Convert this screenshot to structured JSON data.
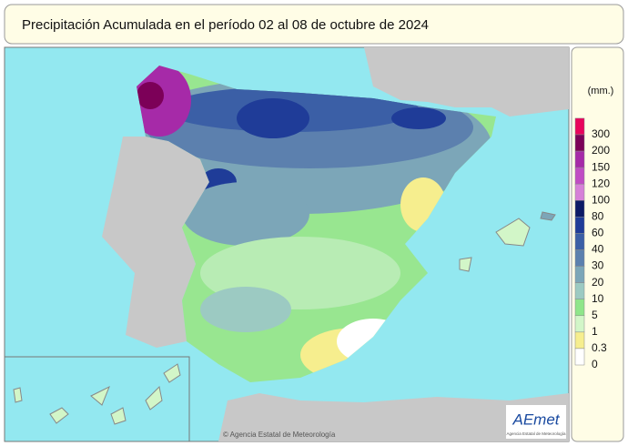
{
  "header": {
    "title": "Precipitación Acumulada en el período 02 al 08 de octubre de 2024"
  },
  "legend": {
    "unit": "(mm.)",
    "items": [
      {
        "label": "300",
        "color": "#e8045c"
      },
      {
        "label": "200",
        "color": "#7c0058"
      },
      {
        "label": "150",
        "color": "#a62aa8"
      },
      {
        "label": "120",
        "color": "#c04cc4"
      },
      {
        "label": "100",
        "color": "#d680d8"
      },
      {
        "label": "80",
        "color": "#0c1a66"
      },
      {
        "label": "60",
        "color": "#1f3c98"
      },
      {
        "label": "40",
        "color": "#3b5fa6"
      },
      {
        "label": "30",
        "color": "#5c80ae"
      },
      {
        "label": "20",
        "color": "#7ca6b8"
      },
      {
        "label": "10",
        "color": "#9ccac2"
      },
      {
        "label": "5",
        "color": "#8fe68a"
      },
      {
        "label": "1",
        "color": "#d2f6c8"
      },
      {
        "label": "0.3",
        "color": "#f6ee8e"
      },
      {
        "label": "0",
        "color": "#ffffff"
      }
    ]
  },
  "credit": "© Agencia Estatal de Meteorología",
  "logo": {
    "name": "AEmet",
    "subtitle": "Agencia Estatal de Meteorología"
  }
}
